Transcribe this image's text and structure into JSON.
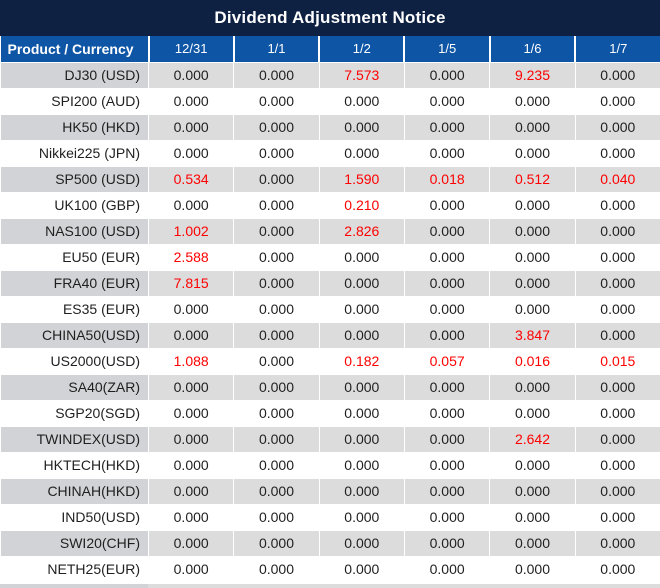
{
  "title": "Dividend Adjustment Notice",
  "colors": {
    "title_bar_bg": "#0e2143",
    "header_bg": "#0e55a6",
    "header_text": "#ffffff",
    "alt_row_bg": "#dcdcdc",
    "alt_row_product_bg": "#d2d3d6",
    "value_text": "#1f1f1f",
    "value_highlight": "#fe0000"
  },
  "table": {
    "corner_header": "Product / Currency",
    "date_headers": [
      "12/31",
      "1/1",
      "1/2",
      "1/5",
      "1/6",
      "1/7"
    ],
    "rows": [
      {
        "product": "DJ30 (USD)",
        "values": [
          "0.000",
          "0.000",
          "7.573",
          "0.000",
          "9.235",
          "0.000"
        ],
        "red_cols": [
          2,
          4
        ]
      },
      {
        "product": "SPI200 (AUD)",
        "values": [
          "0.000",
          "0.000",
          "0.000",
          "0.000",
          "0.000",
          "0.000"
        ],
        "red_cols": []
      },
      {
        "product": "HK50 (HKD)",
        "values": [
          "0.000",
          "0.000",
          "0.000",
          "0.000",
          "0.000",
          "0.000"
        ],
        "red_cols": []
      },
      {
        "product": "Nikkei225 (JPN)",
        "values": [
          "0.000",
          "0.000",
          "0.000",
          "0.000",
          "0.000",
          "0.000"
        ],
        "red_cols": []
      },
      {
        "product": "SP500 (USD)",
        "values": [
          "0.534",
          "0.000",
          "1.590",
          "0.018",
          "0.512",
          "0.040"
        ],
        "red_cols": [
          0,
          2,
          3,
          4,
          5
        ]
      },
      {
        "product": "UK100 (GBP)",
        "values": [
          "0.000",
          "0.000",
          "0.210",
          "0.000",
          "0.000",
          "0.000"
        ],
        "red_cols": [
          2
        ]
      },
      {
        "product": "NAS100 (USD)",
        "values": [
          "1.002",
          "0.000",
          "2.826",
          "0.000",
          "0.000",
          "0.000"
        ],
        "red_cols": [
          0,
          2
        ]
      },
      {
        "product": "EU50 (EUR)",
        "values": [
          "2.588",
          "0.000",
          "0.000",
          "0.000",
          "0.000",
          "0.000"
        ],
        "red_cols": [
          0
        ]
      },
      {
        "product": "FRA40 (EUR)",
        "values": [
          "7.815",
          "0.000",
          "0.000",
          "0.000",
          "0.000",
          "0.000"
        ],
        "red_cols": [
          0
        ]
      },
      {
        "product": "ES35 (EUR)",
        "values": [
          "0.000",
          "0.000",
          "0.000",
          "0.000",
          "0.000",
          "0.000"
        ],
        "red_cols": []
      },
      {
        "product": "CHINA50(USD)",
        "values": [
          "0.000",
          "0.000",
          "0.000",
          "0.000",
          "3.847",
          "0.000"
        ],
        "red_cols": [
          4
        ]
      },
      {
        "product": "US2000(USD)",
        "values": [
          "1.088",
          "0.000",
          "0.182",
          "0.057",
          "0.016",
          "0.015"
        ],
        "red_cols": [
          0,
          2,
          3,
          4,
          5
        ]
      },
      {
        "product": "SA40(ZAR)",
        "values": [
          "0.000",
          "0.000",
          "0.000",
          "0.000",
          "0.000",
          "0.000"
        ],
        "red_cols": []
      },
      {
        "product": "SGP20(SGD)",
        "values": [
          "0.000",
          "0.000",
          "0.000",
          "0.000",
          "0.000",
          "0.000"
        ],
        "red_cols": []
      },
      {
        "product": "TWINDEX(USD)",
        "values": [
          "0.000",
          "0.000",
          "0.000",
          "0.000",
          "2.642",
          "0.000"
        ],
        "red_cols": [
          4
        ]
      },
      {
        "product": "HKTECH(HKD)",
        "values": [
          "0.000",
          "0.000",
          "0.000",
          "0.000",
          "0.000",
          "0.000"
        ],
        "red_cols": []
      },
      {
        "product": "CHINAH(HKD)",
        "values": [
          "0.000",
          "0.000",
          "0.000",
          "0.000",
          "0.000",
          "0.000"
        ],
        "red_cols": []
      },
      {
        "product": "IND50(USD)",
        "values": [
          "0.000",
          "0.000",
          "0.000",
          "0.000",
          "0.000",
          "0.000"
        ],
        "red_cols": []
      },
      {
        "product": "SWI20(CHF)",
        "values": [
          "0.000",
          "0.000",
          "0.000",
          "0.000",
          "0.000",
          "0.000"
        ],
        "red_cols": []
      },
      {
        "product": "NETH25(EUR)",
        "values": [
          "0.000",
          "0.000",
          "0.000",
          "0.000",
          "0.000",
          "0.000"
        ],
        "red_cols": []
      }
    ]
  },
  "chart_data": {
    "type": "table",
    "title": "Dividend Adjustment Notice",
    "columns": [
      "Product / Currency",
      "12/31",
      "1/1",
      "1/2",
      "1/5",
      "1/6",
      "1/7"
    ],
    "rows": [
      [
        "DJ30 (USD)",
        0.0,
        0.0,
        7.573,
        0.0,
        9.235,
        0.0
      ],
      [
        "SPI200 (AUD)",
        0.0,
        0.0,
        0.0,
        0.0,
        0.0,
        0.0
      ],
      [
        "HK50 (HKD)",
        0.0,
        0.0,
        0.0,
        0.0,
        0.0,
        0.0
      ],
      [
        "Nikkei225 (JPN)",
        0.0,
        0.0,
        0.0,
        0.0,
        0.0,
        0.0
      ],
      [
        "SP500 (USD)",
        0.534,
        0.0,
        1.59,
        0.018,
        0.512,
        0.04
      ],
      [
        "UK100 (GBP)",
        0.0,
        0.0,
        0.21,
        0.0,
        0.0,
        0.0
      ],
      [
        "NAS100 (USD)",
        1.002,
        0.0,
        2.826,
        0.0,
        0.0,
        0.0
      ],
      [
        "EU50 (EUR)",
        2.588,
        0.0,
        0.0,
        0.0,
        0.0,
        0.0
      ],
      [
        "FRA40 (EUR)",
        7.815,
        0.0,
        0.0,
        0.0,
        0.0,
        0.0
      ],
      [
        "ES35 (EUR)",
        0.0,
        0.0,
        0.0,
        0.0,
        0.0,
        0.0
      ],
      [
        "CHINA50(USD)",
        0.0,
        0.0,
        0.0,
        0.0,
        3.847,
        0.0
      ],
      [
        "US2000(USD)",
        1.088,
        0.0,
        0.182,
        0.057,
        0.016,
        0.015
      ],
      [
        "SA40(ZAR)",
        0.0,
        0.0,
        0.0,
        0.0,
        0.0,
        0.0
      ],
      [
        "SGP20(SGD)",
        0.0,
        0.0,
        0.0,
        0.0,
        0.0,
        0.0
      ],
      [
        "TWINDEX(USD)",
        0.0,
        0.0,
        0.0,
        0.0,
        2.642,
        0.0
      ],
      [
        "HKTECH(HKD)",
        0.0,
        0.0,
        0.0,
        0.0,
        0.0,
        0.0
      ],
      [
        "CHINAH(HKD)",
        0.0,
        0.0,
        0.0,
        0.0,
        0.0,
        0.0
      ],
      [
        "IND50(USD)",
        0.0,
        0.0,
        0.0,
        0.0,
        0.0,
        0.0
      ],
      [
        "SWI20(CHF)",
        0.0,
        0.0,
        0.0,
        0.0,
        0.0,
        0.0
      ],
      [
        "NETH25(EUR)",
        0.0,
        0.0,
        0.0,
        0.0,
        0.0,
        0.0
      ]
    ],
    "notes": "Non-zero dividend adjustments rendered in red; zero values in black. Rows alternate gray/white."
  }
}
